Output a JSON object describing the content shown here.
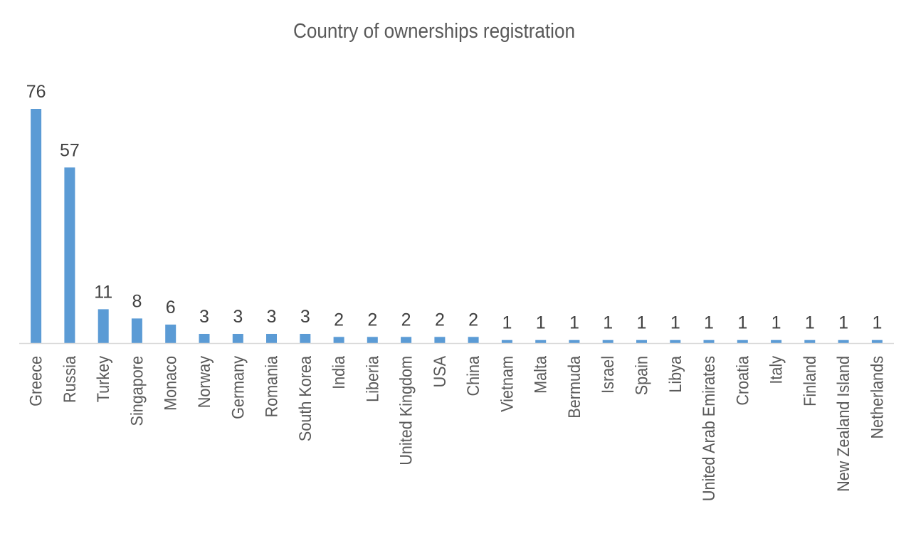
{
  "chart_data": {
    "type": "bar",
    "title": "Country of ownerships registration",
    "xlabel": "",
    "ylabel": "",
    "categories": [
      "Greece",
      "Russia",
      "Turkey",
      "Singapore",
      "Monaco",
      "Norway",
      "Germany",
      "Romania",
      "South Korea",
      "India",
      "Liberia",
      "United Kingdom",
      "USA",
      "China",
      "Vietnam",
      "Malta",
      "Bermuda",
      "Israel",
      "Spain",
      "Libya",
      "United Arab Emirates",
      "Croatia",
      "Italy",
      "Finland",
      "New Zealand Island",
      "Netherlands"
    ],
    "values": [
      76,
      57,
      11,
      8,
      6,
      3,
      3,
      3,
      3,
      2,
      2,
      2,
      2,
      2,
      1,
      1,
      1,
      1,
      1,
      1,
      1,
      1,
      1,
      1,
      1,
      1
    ],
    "ylim": [
      0,
      76
    ],
    "grid": false,
    "legend": "none",
    "data_labels": true,
    "colors": {
      "bar": "#5B9BD5",
      "axis": "#D9D9D9",
      "title": "#595959",
      "labels": "#404040"
    }
  }
}
